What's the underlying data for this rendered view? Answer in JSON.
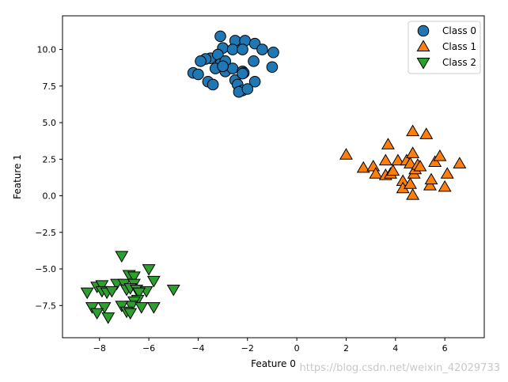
{
  "chart_data": {
    "type": "scatter",
    "title": "",
    "xlabel": "Feature 0",
    "ylabel": "Feature 1",
    "xlim": [
      -9.5,
      7.6
    ],
    "ylim": [
      -9.7,
      12.3
    ],
    "x_ticks": [
      -8,
      -6,
      -4,
      -2,
      0,
      2,
      4,
      6
    ],
    "y_ticks": [
      -7.5,
      -5.0,
      -2.5,
      0.0,
      2.5,
      5.0,
      7.5,
      10.0
    ],
    "grid": false,
    "legend_position": "top-right",
    "series": [
      {
        "name": "Class 0",
        "marker": "circle",
        "color": "#1f77b4",
        "points": [
          [
            -3.1,
            10.9
          ],
          [
            -2.5,
            10.6
          ],
          [
            -2.1,
            10.6
          ],
          [
            -1.7,
            10.4
          ],
          [
            -1.4,
            10.0
          ],
          [
            -0.95,
            9.8
          ],
          [
            -3.0,
            10.1
          ],
          [
            -2.6,
            10.0
          ],
          [
            -2.2,
            10.0
          ],
          [
            -3.5,
            9.4
          ],
          [
            -3.7,
            9.35
          ],
          [
            -3.9,
            9.2
          ],
          [
            -3.2,
            9.65
          ],
          [
            -3.1,
            9.0
          ],
          [
            -2.9,
            9.2
          ],
          [
            -1.75,
            9.2
          ],
          [
            -3.3,
            8.7
          ],
          [
            -2.9,
            8.5
          ],
          [
            -2.6,
            8.7
          ],
          [
            -2.2,
            8.5
          ],
          [
            -2.15,
            8.4
          ],
          [
            -1.0,
            8.8
          ],
          [
            -4.2,
            8.4
          ],
          [
            -4.0,
            8.3
          ],
          [
            -3.6,
            7.8
          ],
          [
            -3.4,
            7.6
          ],
          [
            -2.5,
            7.9
          ],
          [
            -2.4,
            7.6
          ],
          [
            -2.2,
            7.2
          ],
          [
            -2.35,
            7.1
          ],
          [
            -1.7,
            7.8
          ],
          [
            -2.0,
            7.3
          ],
          [
            -3.0,
            8.85
          ],
          [
            -2.2,
            8.35
          ]
        ]
      },
      {
        "name": "Class 1",
        "marker": "triangle-up",
        "color": "#ff7f0e",
        "points": [
          [
            2.0,
            2.8
          ],
          [
            2.7,
            1.9
          ],
          [
            3.1,
            2.0
          ],
          [
            3.2,
            1.5
          ],
          [
            3.6,
            2.4
          ],
          [
            3.6,
            1.4
          ],
          [
            3.8,
            1.5
          ],
          [
            3.9,
            1.7
          ],
          [
            3.7,
            3.5
          ],
          [
            4.1,
            2.4
          ],
          [
            4.3,
            1.0
          ],
          [
            4.3,
            0.5
          ],
          [
            4.45,
            2.4
          ],
          [
            4.6,
            2.2
          ],
          [
            4.7,
            4.4
          ],
          [
            4.7,
            2.9
          ],
          [
            4.75,
            1.5
          ],
          [
            4.8,
            1.8
          ],
          [
            4.6,
            0.8
          ],
          [
            4.7,
            0.05
          ],
          [
            4.9,
            2.1
          ],
          [
            5.0,
            2.0
          ],
          [
            5.25,
            4.2
          ],
          [
            5.4,
            0.7
          ],
          [
            5.45,
            1.1
          ],
          [
            5.6,
            2.3
          ],
          [
            5.8,
            2.7
          ],
          [
            6.0,
            0.6
          ],
          [
            6.1,
            1.5
          ],
          [
            6.6,
            2.2
          ]
        ]
      },
      {
        "name": "Class 2",
        "marker": "triangle-down",
        "color": "#2ca02c",
        "points": [
          [
            -7.1,
            -4.1
          ],
          [
            -6.0,
            -5.0
          ],
          [
            -6.8,
            -5.4
          ],
          [
            -6.6,
            -5.5
          ],
          [
            -5.8,
            -5.8
          ],
          [
            -7.3,
            -6.0
          ],
          [
            -7.0,
            -6.0
          ],
          [
            -6.6,
            -6.0
          ],
          [
            -8.1,
            -6.2
          ],
          [
            -7.9,
            -6.1
          ],
          [
            -6.9,
            -6.4
          ],
          [
            -6.75,
            -6.3
          ],
          [
            -6.5,
            -6.4
          ],
          [
            -6.1,
            -6.5
          ],
          [
            -5.0,
            -6.4
          ],
          [
            -8.5,
            -6.6
          ],
          [
            -7.9,
            -6.5
          ],
          [
            -7.7,
            -6.6
          ],
          [
            -7.5,
            -6.5
          ],
          [
            -6.4,
            -6.6
          ],
          [
            -6.45,
            -7.1
          ],
          [
            -6.6,
            -7.2
          ],
          [
            -6.7,
            -7.5
          ],
          [
            -7.1,
            -7.5
          ],
          [
            -6.3,
            -7.6
          ],
          [
            -5.8,
            -7.6
          ],
          [
            -8.3,
            -7.6
          ],
          [
            -7.8,
            -7.6
          ],
          [
            -8.1,
            -8.0
          ],
          [
            -6.9,
            -7.9
          ],
          [
            -7.65,
            -8.3
          ],
          [
            -6.75,
            -8.0
          ]
        ]
      }
    ]
  },
  "watermark": "https://blog.csdn.net/weixin_42029733"
}
